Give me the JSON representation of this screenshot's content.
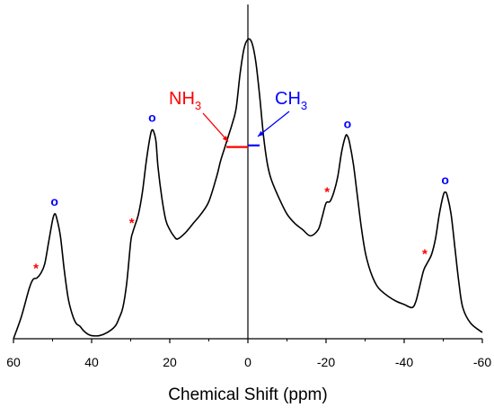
{
  "chart_data": {
    "type": "line",
    "xlabel": "Chemical Shift (ppm)",
    "x_reversed": true,
    "xlim": [
      60,
      -60
    ],
    "x_ticks": [
      60,
      40,
      20,
      0,
      -20,
      -40,
      -60
    ],
    "x_tick_labels": [
      "60",
      "40",
      "20",
      "0",
      "-20",
      "-40",
      "-60"
    ],
    "y_axis_visible": false,
    "ylim": [
      0,
      100
    ],
    "series": [
      {
        "color": "#000000",
        "points": [
          [
            60,
            0
          ],
          [
            58,
            7
          ],
          [
            56,
            16
          ],
          [
            55,
            19
          ],
          [
            54,
            19.5
          ],
          [
            53,
            21
          ],
          [
            52,
            24
          ],
          [
            51,
            31
          ],
          [
            50,
            38
          ],
          [
            49.5,
            40
          ],
          [
            49,
            39
          ],
          [
            48,
            33
          ],
          [
            47,
            22
          ],
          [
            46,
            13
          ],
          [
            45,
            8
          ],
          [
            44,
            5
          ],
          [
            43,
            4
          ],
          [
            42,
            2.5
          ],
          [
            41,
            1.5
          ],
          [
            40,
            1
          ],
          [
            38,
            1
          ],
          [
            36,
            2
          ],
          [
            34,
            4
          ],
          [
            33,
            6.5
          ],
          [
            32,
            10
          ],
          [
            31,
            18
          ],
          [
            30,
            31
          ],
          [
            29.5,
            34
          ],
          [
            29,
            36
          ],
          [
            28,
            40
          ],
          [
            27,
            47
          ],
          [
            26,
            57
          ],
          [
            25,
            65
          ],
          [
            24.5,
            67
          ],
          [
            24,
            66
          ],
          [
            23.5,
            63
          ],
          [
            23,
            55
          ],
          [
            22,
            45
          ],
          [
            21,
            38
          ],
          [
            20,
            35
          ],
          [
            19,
            33
          ],
          [
            18,
            32
          ],
          [
            16,
            34
          ],
          [
            14,
            37
          ],
          [
            12,
            40
          ],
          [
            10,
            44
          ],
          [
            8,
            52
          ],
          [
            7,
            57
          ],
          [
            6,
            61
          ],
          [
            5,
            65
          ],
          [
            4,
            69
          ],
          [
            3,
            74
          ],
          [
            2,
            85
          ],
          [
            1,
            93
          ],
          [
            0,
            96
          ],
          [
            -1,
            95
          ],
          [
            -2,
            89
          ],
          [
            -3,
            78
          ],
          [
            -4,
            65
          ],
          [
            -5,
            56
          ],
          [
            -6,
            51
          ],
          [
            -8,
            45
          ],
          [
            -10,
            40
          ],
          [
            -12,
            37
          ],
          [
            -14,
            35
          ],
          [
            -16,
            33
          ],
          [
            -18,
            35
          ],
          [
            -19,
            39
          ],
          [
            -20,
            43.5
          ],
          [
            -21,
            44
          ],
          [
            -22,
            47
          ],
          [
            -23,
            52
          ],
          [
            -24,
            60
          ],
          [
            -25,
            65
          ],
          [
            -25.5,
            65
          ],
          [
            -26,
            63
          ],
          [
            -27,
            56
          ],
          [
            -28,
            46
          ],
          [
            -29,
            36
          ],
          [
            -30,
            28
          ],
          [
            -31,
            23
          ],
          [
            -32,
            19.5
          ],
          [
            -33,
            17
          ],
          [
            -34,
            15.5
          ],
          [
            -36,
            13.5
          ],
          [
            -38,
            12
          ],
          [
            -40,
            11
          ],
          [
            -42,
            10
          ],
          [
            -43,
            12
          ],
          [
            -44,
            17
          ],
          [
            -45,
            22
          ],
          [
            -46,
            24.5
          ],
          [
            -47,
            27
          ],
          [
            -48,
            32
          ],
          [
            -49,
            40
          ],
          [
            -50,
            46
          ],
          [
            -50.5,
            47
          ],
          [
            -51,
            46
          ],
          [
            -52,
            40
          ],
          [
            -53,
            29
          ],
          [
            -54,
            18
          ],
          [
            -55,
            10
          ],
          [
            -57,
            5
          ],
          [
            -60,
            2
          ]
        ]
      }
    ],
    "center_line_x": 0,
    "annotations": {
      "nh3": {
        "main": "NH",
        "sub": "3",
        "color": "#ff0000",
        "segment": [
          5.5,
          0
        ],
        "segment_y": 61.5
      },
      "ch3": {
        "main": "CH",
        "sub": "3",
        "color": "#0000ff",
        "segment": [
          0,
          -3
        ],
        "segment_y": 62
      }
    },
    "circle_markers": {
      "symbol": "o",
      "color": "#0000ff",
      "at": [
        [
          49.5,
          40
        ],
        [
          24.5,
          67
        ],
        [
          -25.5,
          65
        ],
        [
          -50.5,
          47
        ]
      ]
    },
    "star_markers": {
      "symbol": "*",
      "color": "#ff0000",
      "at": [
        [
          54,
          19.5
        ],
        [
          29.5,
          34
        ],
        [
          -20.5,
          44
        ],
        [
          -45.5,
          24
        ]
      ]
    }
  }
}
